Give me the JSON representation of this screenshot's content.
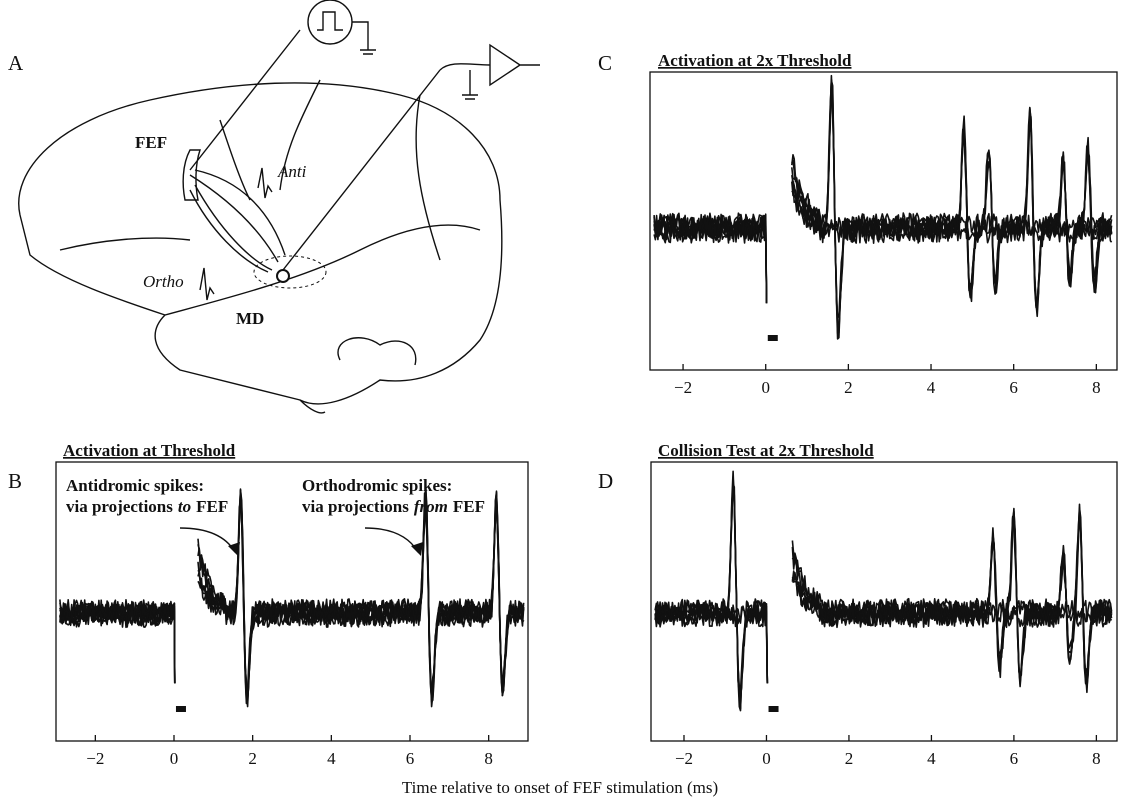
{
  "panels": [
    {
      "label": "A",
      "annotations": [
        "FEF",
        "Anti",
        "Ortho",
        "MD"
      ]
    },
    {
      "label": "B",
      "title": "Activation at Threshold",
      "annotations": [
        [
          "Antidromic spikes:",
          "via projections",
          "to",
          "FEF"
        ],
        [
          "Orthodromic spikes:",
          "via projections",
          "from",
          "FEF"
        ]
      ],
      "xlim": [
        -3,
        9
      ],
      "xticks": [
        {
          "value": -2,
          "label": "−2"
        },
        0,
        2,
        4,
        6,
        8
      ]
    },
    {
      "label": "C",
      "title": "Activation at 2x Threshold",
      "xlim": [
        -2.8,
        8.5
      ],
      "xticks": [
        {
          "value": -2,
          "label": "−2"
        },
        0,
        2,
        4,
        6,
        8
      ]
    },
    {
      "label": "D",
      "title": "Collision Test at 2x Threshold",
      "xlim": [
        -2.8,
        8.5
      ],
      "xticks": [
        {
          "value": -2,
          "label": "−2"
        },
        0,
        2,
        4,
        6,
        8
      ]
    }
  ],
  "xlabel": "Time relative to onset of FEF stimulation (ms)"
}
